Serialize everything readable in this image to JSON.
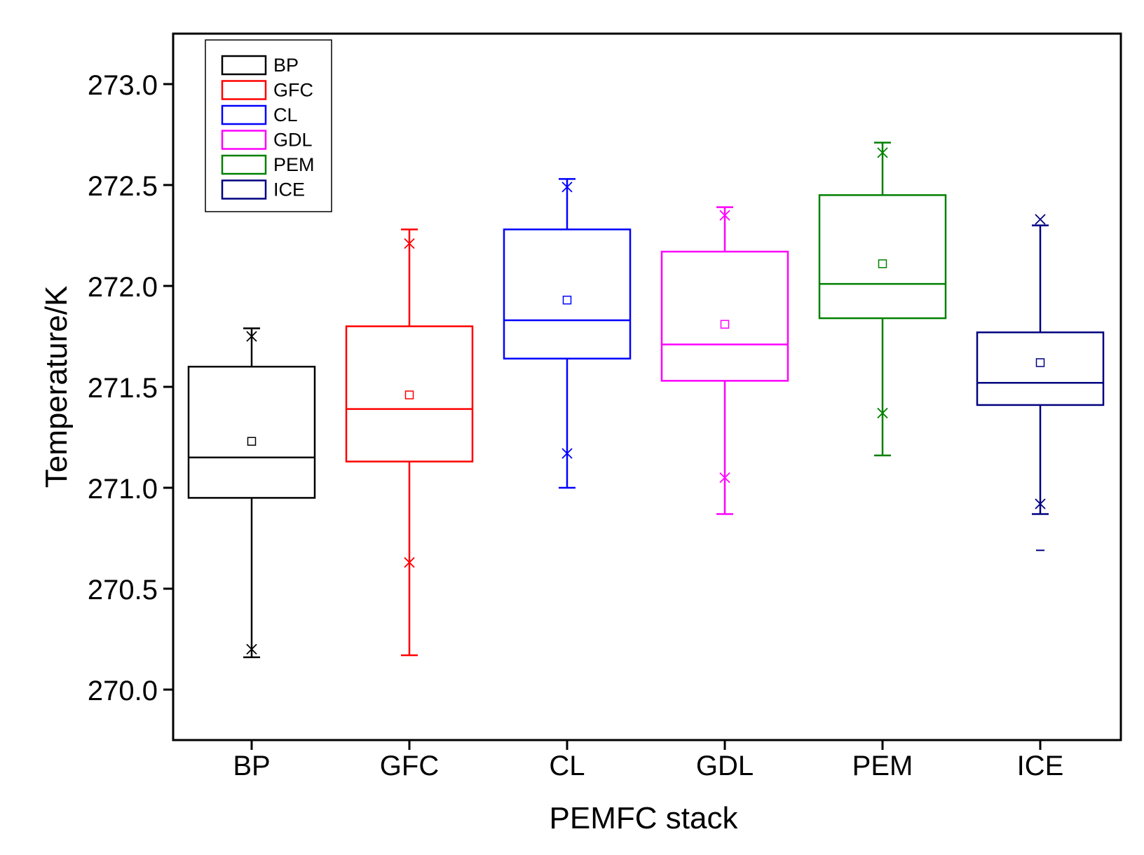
{
  "chart_data": {
    "type": "box",
    "title": "",
    "xlabel": "PEMFC stack",
    "ylabel": "Temperature/K",
    "ylim": [
      269.75,
      273.25
    ],
    "yticks": [
      "270.0",
      "270.5",
      "271.0",
      "271.5",
      "272.0",
      "272.5",
      "273.0"
    ],
    "legend_position": "top-left",
    "categories": [
      "BP",
      "GFC",
      "CL",
      "GDL",
      "PEM",
      "ICE"
    ],
    "series": [
      {
        "name": "BP",
        "color": "#000000",
        "whisker_low": 270.16,
        "q1": 270.95,
        "median": 271.15,
        "q3": 271.6,
        "whisker_high": 271.79,
        "mean": 271.23,
        "x_low": 270.2,
        "x_high": 271.75,
        "outliers": []
      },
      {
        "name": "GFC",
        "color": "#ff0000",
        "whisker_low": 270.17,
        "q1": 271.13,
        "median": 271.39,
        "q3": 271.8,
        "whisker_high": 272.28,
        "mean": 271.46,
        "x_low": 270.63,
        "x_high": 272.21,
        "outliers": []
      },
      {
        "name": "CL",
        "color": "#0000ff",
        "whisker_low": 271.0,
        "q1": 271.64,
        "median": 271.83,
        "q3": 272.28,
        "whisker_high": 272.53,
        "mean": 271.93,
        "x_low": 271.17,
        "x_high": 272.49,
        "outliers": []
      },
      {
        "name": "GDL",
        "color": "#ff00ff",
        "whisker_low": 270.87,
        "q1": 271.53,
        "median": 271.71,
        "q3": 272.17,
        "whisker_high": 272.39,
        "mean": 271.81,
        "x_low": 271.05,
        "x_high": 272.35,
        "outliers": []
      },
      {
        "name": "PEM",
        "color": "#008000",
        "whisker_low": 271.16,
        "q1": 271.84,
        "median": 272.01,
        "q3": 272.45,
        "whisker_high": 272.71,
        "mean": 272.11,
        "x_low": 271.37,
        "x_high": 272.66,
        "outliers": []
      },
      {
        "name": "ICE",
        "color": "#000080",
        "whisker_low": 270.87,
        "q1": 271.41,
        "median": 271.52,
        "q3": 271.77,
        "whisker_high": 272.3,
        "mean": 271.62,
        "x_low": 270.92,
        "x_high": 272.33,
        "outliers": [
          270.69
        ]
      }
    ]
  }
}
